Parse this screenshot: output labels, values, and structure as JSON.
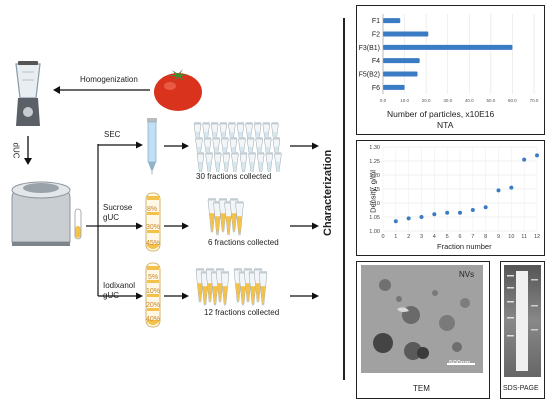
{
  "workflow": {
    "homogenization": "Homogenization",
    "duc": "dUC",
    "sec": "SEC",
    "sucrose": "Sucrose",
    "sucrose_guc": "gUC",
    "iodixanol": "Iodixanol",
    "iodixanol_guc": "gUC",
    "sec_fractions": "30 fractions collected",
    "sucrose_fractions": "6 fractions collected",
    "iodixanol_fractions": "12 fractions collected",
    "characterization": "Characterization",
    "sucrose_pcts": [
      "8%",
      "30%",
      "45%"
    ],
    "iodixanol_pcts": [
      "5%",
      "10%",
      "20%",
      "40%"
    ]
  },
  "panels": {
    "nta_caption": "NTA",
    "tem_caption": "TEM",
    "tem_nvs": "NVs",
    "tem_scale": "500nm",
    "sds_caption": "SDS-PAGE"
  },
  "colors": {
    "bar": "#3a7cc4",
    "point": "#3a7cc4",
    "tube_sec": "#bfe0f5",
    "tube_gradient": "#f4c14a",
    "tomato": "#d9331e"
  },
  "chart_data": [
    {
      "type": "bar",
      "orientation": "horizontal",
      "categories": [
        "F1",
        "F2",
        "F3(B1)",
        "F4",
        "F5(B2)",
        "F6"
      ],
      "values": [
        8,
        21,
        60,
        17,
        16,
        10
      ],
      "xlim": [
        0,
        70
      ],
      "xticks": [
        "0.0",
        "10.0",
        "20.0",
        "30.0",
        "40.0",
        "50.0",
        "60.0",
        "70.0"
      ],
      "xlabel": "Number of particles, x10E16",
      "ylabel": "",
      "grid": true
    },
    {
      "type": "scatter",
      "x": [
        1,
        2,
        3,
        4,
        5,
        6,
        7,
        8,
        9,
        10,
        11,
        12
      ],
      "y": [
        1.035,
        1.045,
        1.05,
        1.06,
        1.065,
        1.065,
        1.075,
        1.085,
        1.145,
        1.155,
        1.255,
        1.27
      ],
      "xlim": [
        0,
        12
      ],
      "ylim": [
        1.0,
        1.3
      ],
      "xticks": [
        "0",
        "1",
        "2",
        "3",
        "4",
        "5",
        "6",
        "7",
        "8",
        "9",
        "10",
        "11",
        "12"
      ],
      "yticks": [
        "1.00",
        "1.05",
        "1.10",
        "1.15",
        "1.20",
        "1.25",
        "1.30"
      ],
      "xlabel": "Fraction number",
      "ylabel": "Density, g/ml",
      "grid": true
    }
  ]
}
